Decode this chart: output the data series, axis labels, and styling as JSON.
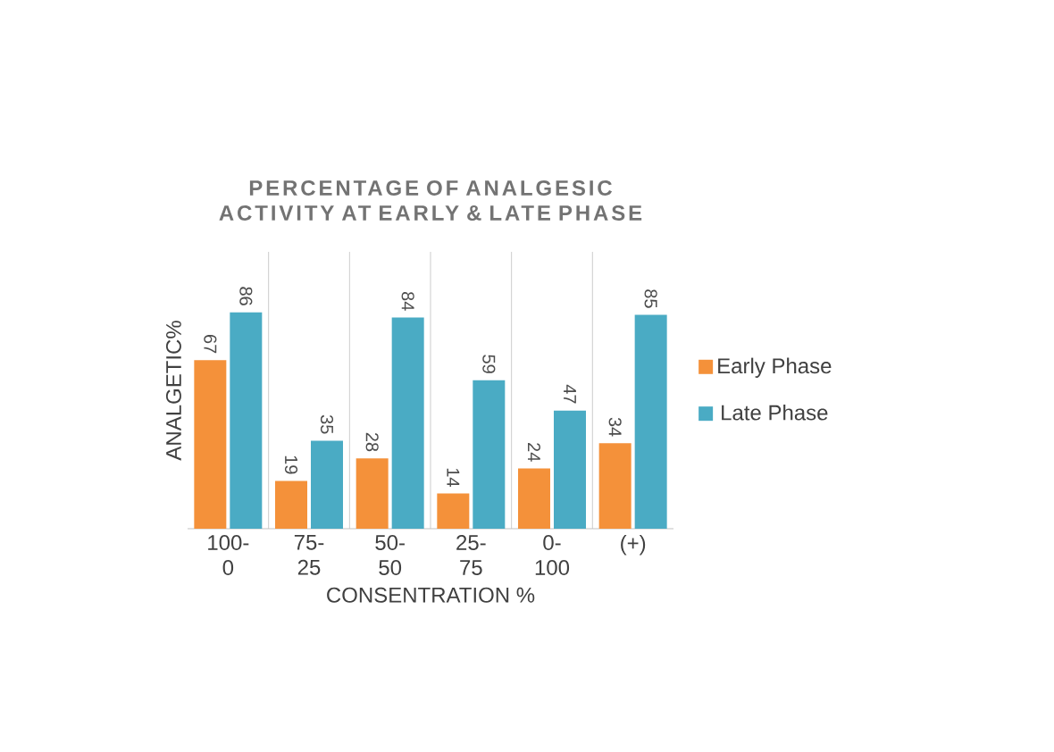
{
  "chart_data": {
    "type": "bar",
    "title": "PERCENTAGE OF ANALGESIC ACTIVITY AT EARLY & LATE PHASE",
    "xlabel": "CONSENTRATION %",
    "ylabel": "ANALGETIC%",
    "categories": [
      "100-0",
      "75-25",
      "50-50",
      "25-75",
      "0-100",
      "(+)"
    ],
    "series": [
      {
        "name": "Early Phase",
        "color": "#f4913a",
        "values": [
          67,
          19,
          28,
          14,
          24,
          34
        ]
      },
      {
        "name": "Late Phase",
        "color": "#4aabc4",
        "values": [
          86,
          35,
          84,
          59,
          47,
          85
        ]
      }
    ],
    "data_labels": true,
    "legend": "right",
    "grid": "x"
  }
}
